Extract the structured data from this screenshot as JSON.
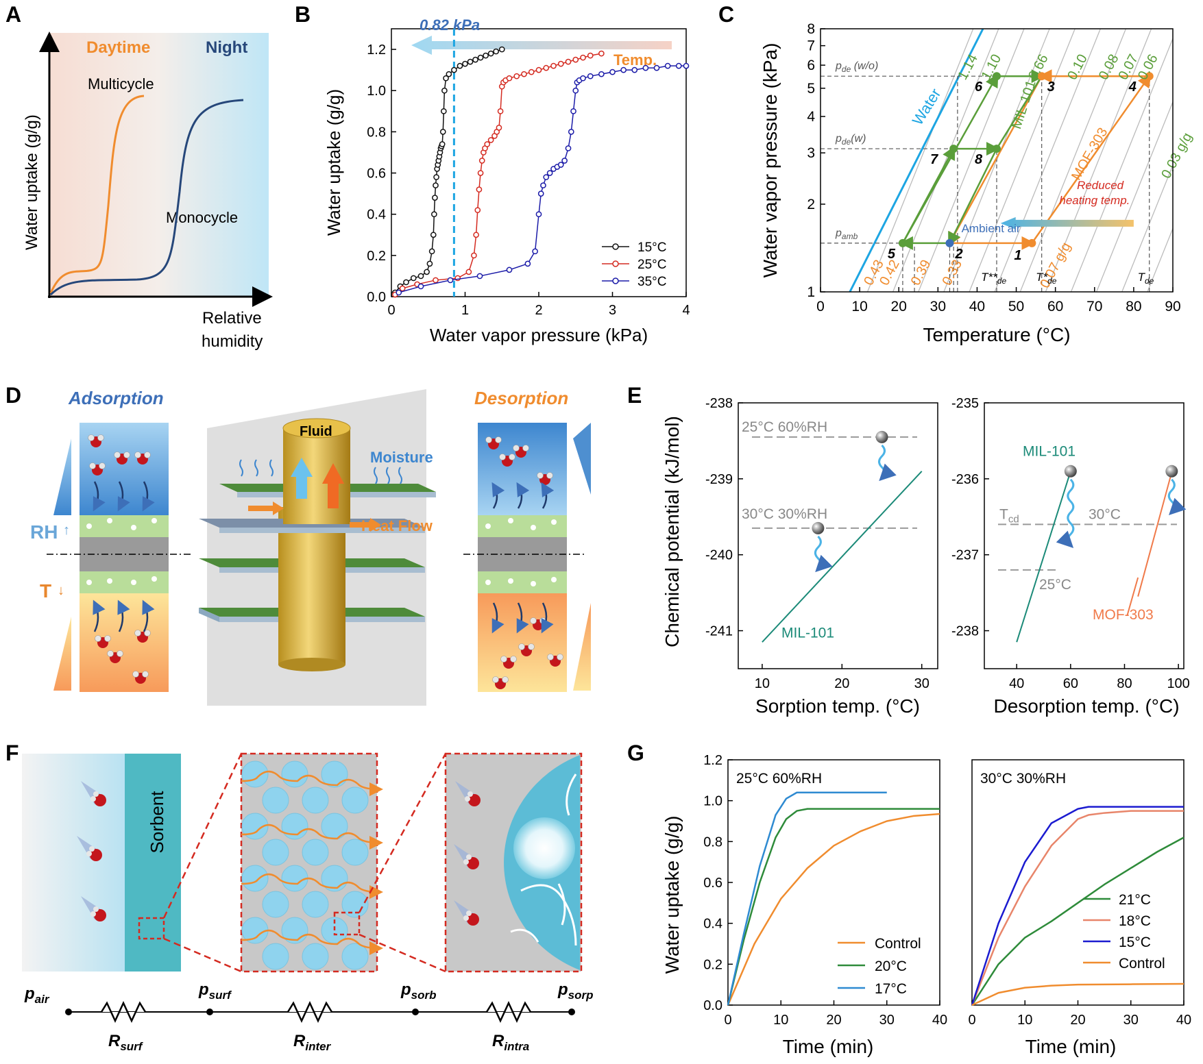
{
  "panels": {
    "A": "A",
    "B": "B",
    "C": "C",
    "D": "D",
    "E": "E",
    "F": "F",
    "G": "G"
  },
  "colors": {
    "orange": "#F08C2E",
    "navy": "#26477A",
    "blue": "#3D6FB8",
    "lightblue": "#4BB3E6",
    "green": "#5A9E3A",
    "teal": "#1B8A78",
    "red": "#D42A20",
    "gray": "#888888",
    "sorbent": "#4FB9C3"
  },
  "panelA": {
    "day": "Daytime",
    "night": "Night",
    "multi": "Multicycle",
    "mono": "Monocycle",
    "ylabel": "Water uptake (g/g)",
    "xlabel1": "Relative",
    "xlabel2": "humidity"
  },
  "panelD": {
    "ads": "Adsorption",
    "des": "Desorption",
    "rh": "RH",
    "t": "T",
    "fluid": "Fluid",
    "moisture": "Moisture",
    "heat": "Heat Flow"
  },
  "panelF": {
    "sorbent": "Sorbent",
    "p_air": "p",
    "p_air_sub": "air",
    "p_surf": "p",
    "p_surf_sub": "surf",
    "p_sorb": "p",
    "p_sorb_sub": "sorb",
    "p_sorp": "p",
    "p_sorp_sub": "sorp",
    "r_surf": "R",
    "r_surf_sub": "surf",
    "r_inter": "R",
    "r_inter_sub": "inter",
    "r_intra": "R",
    "r_intra_sub": "intra"
  },
  "chart_data": [
    {
      "id": "B",
      "type": "scatter",
      "title": "",
      "xlabel": "Water vapor pressure (kPa)",
      "ylabel": "Water uptake (g/g)",
      "xlim": [
        0,
        4
      ],
      "ylim": [
        0,
        1.3
      ],
      "xticks": [
        0,
        1,
        2,
        3,
        4
      ],
      "yticks": [
        0,
        0.2,
        0.4,
        0.6,
        0.8,
        1.0,
        1.2
      ],
      "xtick_labels": [
        "0",
        "1",
        "2",
        "3",
        "4"
      ],
      "ytick_labels": [
        "0.0",
        "0.2",
        "0.4",
        "0.6",
        "0.8",
        "1.0",
        "1.2"
      ],
      "annotation": "0.82 kPa",
      "annotation_x": 0.85,
      "arrow_label": "Temp.",
      "series": [
        {
          "name": "15°C",
          "color": "#111111",
          "x": [
            0.05,
            0.12,
            0.2,
            0.3,
            0.4,
            0.48,
            0.52,
            0.55,
            0.57,
            0.58,
            0.59,
            0.6,
            0.61,
            0.62,
            0.63,
            0.64,
            0.65,
            0.66,
            0.67,
            0.68,
            0.69,
            0.7,
            0.71,
            0.72,
            0.74,
            0.78,
            0.85,
            0.93,
            1.0,
            1.07,
            1.14,
            1.21,
            1.28,
            1.35,
            1.42,
            1.5
          ],
          "y": [
            0.02,
            0.05,
            0.07,
            0.09,
            0.1,
            0.12,
            0.16,
            0.22,
            0.3,
            0.4,
            0.48,
            0.54,
            0.58,
            0.62,
            0.64,
            0.66,
            0.68,
            0.7,
            0.72,
            0.73,
            0.74,
            0.8,
            0.9,
            1.0,
            1.06,
            1.08,
            1.1,
            1.12,
            1.13,
            1.14,
            1.15,
            1.16,
            1.17,
            1.18,
            1.19,
            1.2
          ]
        },
        {
          "name": "25°C",
          "color": "#D42A20",
          "x": [
            0.05,
            0.15,
            0.35,
            0.6,
            0.9,
            1.05,
            1.12,
            1.15,
            1.17,
            1.19,
            1.21,
            1.23,
            1.25,
            1.27,
            1.3,
            1.35,
            1.4,
            1.43,
            1.46,
            1.48,
            1.5,
            1.52,
            1.55,
            1.6,
            1.7,
            1.8,
            1.9,
            2.0,
            2.1,
            2.2,
            2.3,
            2.4,
            2.5,
            2.6,
            2.7,
            2.85
          ],
          "y": [
            0.01,
            0.04,
            0.06,
            0.08,
            0.09,
            0.12,
            0.2,
            0.3,
            0.42,
            0.52,
            0.6,
            0.66,
            0.7,
            0.72,
            0.74,
            0.76,
            0.78,
            0.8,
            0.82,
            0.9,
            1.02,
            1.04,
            1.05,
            1.06,
            1.07,
            1.08,
            1.09,
            1.1,
            1.11,
            1.12,
            1.13,
            1.14,
            1.15,
            1.16,
            1.17,
            1.18
          ]
        },
        {
          "name": "35°C",
          "color": "#1B1BA8",
          "x": [
            0.1,
            0.4,
            0.8,
            1.2,
            1.6,
            1.85,
            1.95,
            2.0,
            2.03,
            2.06,
            2.1,
            2.15,
            2.2,
            2.25,
            2.3,
            2.35,
            2.4,
            2.44,
            2.47,
            2.5,
            2.52,
            2.55,
            2.6,
            2.7,
            2.85,
            3.0,
            3.15,
            3.3,
            3.45,
            3.6,
            3.75,
            3.9,
            4.0
          ],
          "y": [
            0.02,
            0.05,
            0.08,
            0.1,
            0.13,
            0.16,
            0.22,
            0.4,
            0.5,
            0.54,
            0.58,
            0.6,
            0.62,
            0.63,
            0.64,
            0.66,
            0.72,
            0.8,
            0.9,
            1.0,
            1.04,
            1.05,
            1.06,
            1.07,
            1.08,
            1.09,
            1.1,
            1.1,
            1.11,
            1.11,
            1.12,
            1.12,
            1.12
          ]
        }
      ]
    },
    {
      "id": "C",
      "type": "line",
      "xlabel": "Temperature (°C)",
      "ylabel": "Water vapor pressure (kPa)",
      "xlim": [
        0,
        90
      ],
      "ylim": [
        1,
        8
      ],
      "yscale": "log",
      "xticks": [
        0,
        10,
        20,
        30,
        40,
        50,
        60,
        70,
        80,
        90
      ],
      "xtick_labels": [
        "0",
        "10",
        "20",
        "30",
        "40",
        "50",
        "60",
        "70",
        "80",
        "90"
      ],
      "yticks": [
        1,
        2,
        3,
        4,
        5,
        6,
        7,
        8
      ],
      "ytick_labels": [
        "1",
        "2",
        "3",
        "4",
        "5",
        "6",
        "7",
        "8"
      ],
      "labels": {
        "water": "Water",
        "mil": "MIL-101",
        "mof": "MOF-303",
        "ambient": "Ambient air",
        "reduced1": "Reduced",
        "reduced2": "heating temp.",
        "pde_wo": "p",
        "pde_wo_sub": "de",
        "pde_wo_tail": " (w/o)",
        "pde_w": "p",
        "pde_w_sub": "de",
        "pde_w_tail": "(w)",
        "pamb": "p",
        "pamb_sub": "amb",
        "Tde": "T",
        "Tde_sub": "de",
        "Tstar": "T*",
        "Tstar_sub": "de",
        "Tss": "T**",
        "Tss_sub": "de"
      },
      "iso_top": [
        "1.14",
        "1.10",
        "0.66",
        "0.10",
        "0.08",
        "0.07",
        "0.06",
        "0.03 g/g"
      ],
      "iso_bottom": [
        "0.43",
        "0.42",
        "0.39",
        "0.33",
        "0.07 g/g"
      ],
      "points": [
        {
          "id": "1",
          "t": 54,
          "p": 1.47
        },
        {
          "id": "2",
          "t": 33,
          "p": 1.47
        },
        {
          "id": "3",
          "t": 56.5,
          "p": 5.5
        },
        {
          "id": "4",
          "t": 84,
          "p": 5.5
        },
        {
          "id": "5",
          "t": 21,
          "p": 1.47
        },
        {
          "id": "6",
          "t": 45,
          "p": 5.5
        },
        {
          "id": "7",
          "t": 34,
          "p": 3.1
        },
        {
          "id": "8",
          "t": 45,
          "p": 3.1
        }
      ],
      "p_de_wo": 5.5,
      "p_de_w": 3.1,
      "p_amb": 1.47
    },
    {
      "id": "E1",
      "type": "line",
      "xlabel": "Sorption temp. (°C)",
      "ylabel": "Chemical potential (kJ/mol)",
      "xlim": [
        7,
        32
      ],
      "ylim": [
        -241.5,
        -238
      ],
      "xticks": [
        10,
        20,
        30
      ],
      "xtick_labels": [
        "10",
        "20",
        "30"
      ],
      "yticks": [
        -238,
        -239,
        -240,
        -241
      ],
      "ytick_labels": [
        "-238",
        "-239",
        "-240",
        "-241"
      ],
      "series": [
        {
          "name": "MIL-101",
          "x": [
            10,
            30
          ],
          "y": [
            -241.15,
            -238.9
          ]
        }
      ],
      "levels": [
        {
          "label": "25°C 60%RH",
          "y": -238.45
        },
        {
          "label": "30°C 30%RH",
          "y": -239.65
        }
      ]
    },
    {
      "id": "E2",
      "type": "line",
      "xlabel": "Desorption temp. (°C)",
      "xlim": [
        28,
        102
      ],
      "ylim": [
        -238.5,
        -235
      ],
      "xticks": [
        40,
        60,
        80,
        100
      ],
      "xtick_labels": [
        "40",
        "60",
        "80",
        "100"
      ],
      "yticks": [
        -235,
        -236,
        -237,
        -238
      ],
      "ytick_labels": [
        "-235",
        "-236",
        "-237",
        "-238"
      ],
      "series": [
        {
          "name": "MIL-101",
          "x": [
            40,
            60
          ],
          "y": [
            -238.15,
            -235.9
          ]
        },
        {
          "name": "MOF-303",
          "x": [
            85,
            98
          ],
          "y": [
            -237.55,
            -235.85
          ]
        }
      ],
      "levels": [
        {
          "label": "T",
          "sub": "cd",
          "label2": "30°C",
          "y": -236.6
        },
        {
          "label": "25°C",
          "y": -237.2
        }
      ]
    },
    {
      "id": "G1",
      "type": "line",
      "title": "25°C 60%RH",
      "xlabel": "Time (min)",
      "ylabel": "Water uptake (g/g)",
      "xlim": [
        0,
        40
      ],
      "ylim": [
        0,
        1.2
      ],
      "xticks": [
        0,
        10,
        20,
        30,
        40
      ],
      "xtick_labels": [
        "0",
        "10",
        "20",
        "30",
        "40"
      ],
      "yticks": [
        0,
        0.2,
        0.4,
        0.6,
        0.8,
        1.0,
        1.2
      ],
      "ytick_labels": [
        "0.0",
        "0.2",
        "0.4",
        "0.6",
        "0.8",
        "1.0",
        "1.2"
      ],
      "series": [
        {
          "name": "Control",
          "color": "#F08C2E",
          "x": [
            0,
            5,
            10,
            15,
            20,
            25,
            30,
            35,
            40
          ],
          "y": [
            0,
            0.3,
            0.52,
            0.67,
            0.78,
            0.85,
            0.9,
            0.925,
            0.935
          ]
        },
        {
          "name": "20°C",
          "color": "#2E8B3A",
          "x": [
            0,
            3,
            6,
            9,
            11,
            13,
            15,
            40
          ],
          "y": [
            0,
            0.32,
            0.6,
            0.82,
            0.91,
            0.95,
            0.96,
            0.96
          ]
        },
        {
          "name": "17°C",
          "color": "#2E8AD1",
          "x": [
            0,
            3,
            6,
            9,
            11,
            13,
            15,
            30
          ],
          "y": [
            0,
            0.35,
            0.68,
            0.93,
            1.01,
            1.04,
            1.04,
            1.04
          ]
        }
      ]
    },
    {
      "id": "G2",
      "type": "line",
      "title": "30°C 30%RH",
      "xlabel": "Time (min)",
      "xlim": [
        0,
        40
      ],
      "ylim": [
        0,
        1.2
      ],
      "xticks": [
        0,
        10,
        20,
        30,
        40
      ],
      "xtick_labels": [
        "0",
        "10",
        "20",
        "30",
        "40"
      ],
      "series": [
        {
          "name": "21°C",
          "color": "#2E8B3A",
          "x": [
            0,
            5,
            10,
            15,
            20,
            25,
            30,
            35,
            40
          ],
          "y": [
            0,
            0.2,
            0.33,
            0.41,
            0.5,
            0.59,
            0.67,
            0.75,
            0.82
          ]
        },
        {
          "name": "18°C",
          "color": "#E8856A",
          "x": [
            0,
            5,
            10,
            15,
            20,
            22,
            25,
            30,
            40
          ],
          "y": [
            0,
            0.33,
            0.58,
            0.78,
            0.91,
            0.93,
            0.94,
            0.95,
            0.95
          ]
        },
        {
          "name": "15°C",
          "color": "#1B1BD0",
          "x": [
            0,
            5,
            10,
            15,
            20,
            22,
            25,
            30,
            40
          ],
          "y": [
            0,
            0.4,
            0.7,
            0.89,
            0.96,
            0.97,
            0.97,
            0.97,
            0.97
          ]
        },
        {
          "name": "Control",
          "color": "#F08C2E",
          "x": [
            0,
            5,
            10,
            15,
            20,
            30,
            40
          ],
          "y": [
            0,
            0.06,
            0.085,
            0.095,
            0.1,
            0.102,
            0.104
          ]
        }
      ]
    }
  ]
}
